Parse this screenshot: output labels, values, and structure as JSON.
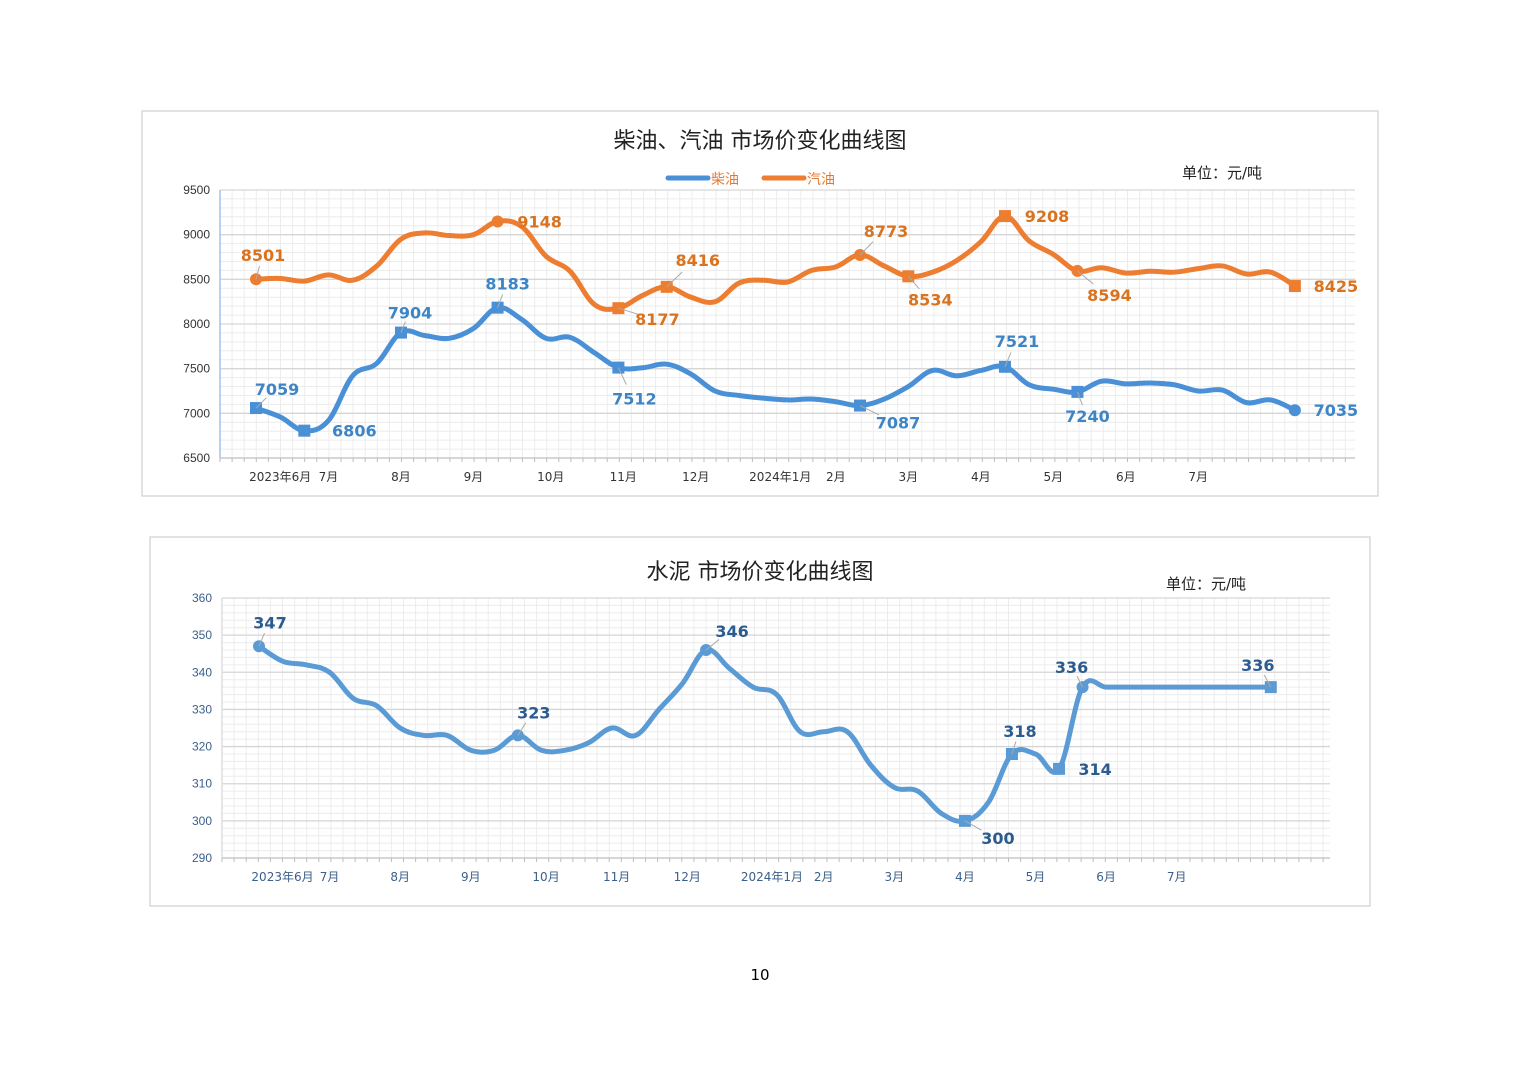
{
  "chart_data": [
    {
      "type": "line",
      "title": "柴油、汽油 市场价变化曲线图",
      "unit": "单位：元/吨",
      "ylim": [
        6500,
        9500
      ],
      "yticks": [
        6500,
        7000,
        7500,
        8000,
        8500,
        9000,
        9500
      ],
      "grid": true,
      "legend_position": "top-center",
      "month_labels": [
        {
          "label": "2023年6月",
          "at": 1
        },
        {
          "label": "7月",
          "at": 3
        },
        {
          "label": "8月",
          "at": 6
        },
        {
          "label": "9月",
          "at": 9
        },
        {
          "label": "10月",
          "at": 12.2
        },
        {
          "label": "11月",
          "at": 15.2
        },
        {
          "label": "12月",
          "at": 18.2
        },
        {
          "label": "2024年1月",
          "at": 21.7
        },
        {
          "label": "2月",
          "at": 24
        },
        {
          "label": "3月",
          "at": 27
        },
        {
          "label": "4月",
          "at": 30
        },
        {
          "label": "5月",
          "at": 33
        },
        {
          "label": "6月",
          "at": 36
        },
        {
          "label": "7月",
          "at": 39
        }
      ],
      "series": [
        {
          "name": "柴油",
          "color": "#4a90d6",
          "values": [
            7059,
            6960,
            6806,
            6920,
            7420,
            7560,
            7904,
            7870,
            7840,
            7950,
            8183,
            8050,
            7840,
            7850,
            7680,
            7512,
            7510,
            7550,
            7440,
            7250,
            7200,
            7170,
            7150,
            7160,
            7130,
            7087,
            7160,
            7300,
            7480,
            7420,
            7480,
            7521,
            7320,
            7270,
            7240,
            7360,
            7330,
            7340,
            7320,
            7250,
            7260,
            7120,
            7150,
            7035
          ],
          "labels": [
            {
              "i": 0,
              "text": "7059",
              "marker": "square"
            },
            {
              "i": 2,
              "text": "6806",
              "marker": "square"
            },
            {
              "i": 6,
              "text": "7904",
              "marker": "square"
            },
            {
              "i": 10,
              "text": "8183",
              "marker": "square"
            },
            {
              "i": 15,
              "text": "7512",
              "marker": "square"
            },
            {
              "i": 25,
              "text": "7087",
              "marker": "square"
            },
            {
              "i": 31,
              "text": "7521",
              "marker": "square"
            },
            {
              "i": 34,
              "text": "7240",
              "marker": "square"
            },
            {
              "i": 43,
              "text": "7035",
              "marker": "circle"
            }
          ]
        },
        {
          "name": "汽油",
          "color": "#ed7d31",
          "values": [
            8501,
            8510,
            8480,
            8550,
            8490,
            8650,
            8950,
            9020,
            8990,
            9000,
            9148,
            9090,
            8760,
            8590,
            8220,
            8177,
            8320,
            8416,
            8300,
            8250,
            8460,
            8490,
            8470,
            8600,
            8640,
            8773,
            8650,
            8534,
            8580,
            8710,
            8920,
            9208,
            8930,
            8780,
            8594,
            8630,
            8570,
            8590,
            8580,
            8620,
            8650,
            8560,
            8580,
            8425
          ],
          "labels": [
            {
              "i": 0,
              "text": "8501",
              "marker": "circle"
            },
            {
              "i": 10,
              "text": "9148",
              "marker": "circle"
            },
            {
              "i": 15,
              "text": "8177",
              "marker": "square"
            },
            {
              "i": 17,
              "text": "8416",
              "marker": "square"
            },
            {
              "i": 25,
              "text": "8773",
              "marker": "circle"
            },
            {
              "i": 27,
              "text": "8534",
              "marker": "square"
            },
            {
              "i": 31,
              "text": "9208",
              "marker": "square"
            },
            {
              "i": 34,
              "text": "8594",
              "marker": "circle"
            },
            {
              "i": 43,
              "text": "8425",
              "marker": "square"
            }
          ]
        }
      ]
    },
    {
      "type": "line",
      "title": "水泥 市场价变化曲线图",
      "unit": "单位：元/吨",
      "ylim": [
        290,
        360
      ],
      "yticks": [
        290,
        300,
        310,
        320,
        330,
        340,
        350,
        360
      ],
      "grid": true,
      "month_labels": [
        {
          "label": "2023年6月",
          "at": 1
        },
        {
          "label": "7月",
          "at": 3
        },
        {
          "label": "8月",
          "at": 6
        },
        {
          "label": "9月",
          "at": 9
        },
        {
          "label": "10月",
          "at": 12.2
        },
        {
          "label": "11月",
          "at": 15.2
        },
        {
          "label": "12月",
          "at": 18.2
        },
        {
          "label": "2024年1月",
          "at": 21.8
        },
        {
          "label": "2月",
          "at": 24
        },
        {
          "label": "3月",
          "at": 27
        },
        {
          "label": "4月",
          "at": 30
        },
        {
          "label": "5月",
          "at": 33
        },
        {
          "label": "6月",
          "at": 36
        },
        {
          "label": "7月",
          "at": 39
        }
      ],
      "series": [
        {
          "name": "水泥",
          "color": "#5b9bd5",
          "values": [
            347,
            343,
            342,
            340,
            333,
            331,
            325,
            323,
            323,
            319,
            319,
            323,
            319,
            319,
            321,
            325,
            323,
            330,
            337,
            346,
            341,
            336,
            334,
            324,
            324,
            324,
            315,
            309,
            308,
            302,
            300,
            305,
            318,
            318,
            314,
            336,
            336,
            336,
            336,
            336,
            336,
            336,
            336,
            336
          ],
          "labels": [
            {
              "i": 0,
              "text": "347",
              "marker": "circle"
            },
            {
              "i": 11,
              "text": "323",
              "marker": "circle"
            },
            {
              "i": 19,
              "text": "346",
              "marker": "circle"
            },
            {
              "i": 30,
              "text": "300",
              "marker": "square"
            },
            {
              "i": 32,
              "text": "318",
              "marker": "square"
            },
            {
              "i": 34,
              "text": "314",
              "marker": "square"
            },
            {
              "i": 35,
              "text": "336",
              "marker": "circle"
            },
            {
              "i": 43,
              "text": "336",
              "marker": "square"
            }
          ]
        }
      ]
    }
  ],
  "page_number": "10"
}
